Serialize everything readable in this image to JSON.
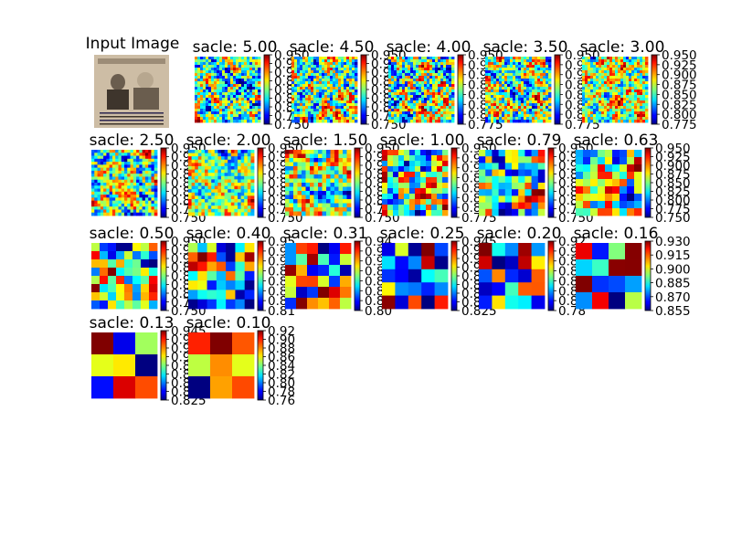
{
  "figure": {
    "background": "#ffffff",
    "input_title": "Input Image",
    "input_image": {
      "palette": [
        "#cdbda5",
        "#d9cab2",
        "#3e352c",
        "#6a5d4e",
        "#9c8c77",
        "#2b2550",
        "#b7a78f"
      ]
    }
  },
  "chart_data": {
    "type": "heatmap",
    "colormap": "jet",
    "panels": [
      {
        "title": "sacle: 5.00",
        "grid": 24,
        "ticks": [
          "0.950",
          "0.925",
          "0.900",
          "0.875",
          "0.850",
          "0.825",
          "0.800",
          "0.775",
          "0.750"
        ],
        "seed": 11
      },
      {
        "title": "sacle: 4.50",
        "grid": 24,
        "ticks": [
          "0.950",
          "0.925",
          "0.900",
          "0.875",
          "0.850",
          "0.825",
          "0.800",
          "0.775",
          "0.750"
        ],
        "seed": 12
      },
      {
        "title": "sacle: 4.00",
        "grid": 24,
        "ticks": [
          "0.950",
          "0.925",
          "0.900",
          "0.875",
          "0.850",
          "0.825",
          "0.800",
          "0.775"
        ],
        "seed": 13
      },
      {
        "title": "sacle: 3.50",
        "grid": 24,
        "ticks": [
          "0.950",
          "0.925",
          "0.900",
          "0.875",
          "0.850",
          "0.825",
          "0.800",
          "0.775"
        ],
        "seed": 14
      },
      {
        "title": "sacle: 3.00",
        "grid": 24,
        "ticks": [
          "0.950",
          "0.925",
          "0.900",
          "0.875",
          "0.850",
          "0.825",
          "0.800",
          "0.775"
        ],
        "seed": 15
      },
      {
        "title": "sacle: 2.50",
        "grid": 22,
        "ticks": [
          "0.950",
          "0.925",
          "0.900",
          "0.875",
          "0.850",
          "0.825",
          "0.800",
          "0.775",
          "0.750"
        ],
        "seed": 21
      },
      {
        "title": "sacle: 2.00",
        "grid": 20,
        "ticks": [
          "0.950",
          "0.925",
          "0.900",
          "0.875",
          "0.850",
          "0.825",
          "0.800",
          "0.775",
          "0.750"
        ],
        "seed": 22
      },
      {
        "title": "sacle: 1.50",
        "grid": 16,
        "ticks": [
          "0.950",
          "0.925",
          "0.900",
          "0.875",
          "0.850",
          "0.825",
          "0.800",
          "0.775",
          "0.750"
        ],
        "seed": 23
      },
      {
        "title": "sacle: 1.00",
        "grid": 12,
        "ticks": [
          "0.950",
          "0.925",
          "0.900",
          "0.875",
          "0.850",
          "0.825",
          "0.800",
          "0.775"
        ],
        "seed": 24
      },
      {
        "title": "sacle: 0.79",
        "grid": 10,
        "ticks": [
          "0.950",
          "0.925",
          "0.900",
          "0.875",
          "0.850",
          "0.825",
          "0.800",
          "0.775",
          "0.750"
        ],
        "seed": 25
      },
      {
        "title": "sacle: 0.63",
        "grid": 9,
        "ticks": [
          "0.950",
          "0.925",
          "0.900",
          "0.875",
          "0.850",
          "0.825",
          "0.800",
          "0.775",
          "0.750"
        ],
        "seed": 26
      },
      {
        "title": "sacle: 0.50",
        "grid": 8,
        "ticks": [
          "0.950",
          "0.925",
          "0.900",
          "0.875",
          "0.850",
          "0.825",
          "0.800",
          "0.775",
          "0.750"
        ],
        "seed": 31
      },
      {
        "title": "sacle: 0.40",
        "grid": 7,
        "ticks": [
          "0.95",
          "0.93",
          "0.91",
          "0.89",
          "0.87",
          "0.85",
          "0.83",
          "0.81"
        ],
        "seed": 32
      },
      {
        "title": "sacle: 0.31",
        "grid": 6,
        "ticks": [
          "0.94",
          "0.92",
          "0.90",
          "0.88",
          "0.86",
          "0.84",
          "0.82",
          "0.80"
        ],
        "seed": 33
      },
      {
        "title": "sacle: 0.25",
        "grid": 5,
        "ticks": [
          "0.945",
          "0.930",
          "0.915",
          "0.900",
          "0.885",
          "0.870",
          "0.855",
          "0.840",
          "0.825"
        ],
        "seed": 34
      },
      {
        "title": "sacle: 0.20",
        "grid": 5,
        "ticks": [
          "0.92",
          "0.90",
          "0.88",
          "0.86",
          "0.84",
          "0.82",
          "0.80",
          "0.78"
        ],
        "seed": 35
      },
      {
        "title": "sacle: 0.16",
        "grid": 4,
        "ticks": [
          "0.930",
          "0.915",
          "0.900",
          "0.885",
          "0.870",
          "0.855"
        ],
        "seed": 36
      },
      {
        "title": "sacle: 0.13",
        "grid": 3,
        "ticks": [
          "0.945",
          "0.930",
          "0.915",
          "0.900",
          "0.885",
          "0.870",
          "0.855",
          "0.840",
          "0.825"
        ],
        "seed": 41
      },
      {
        "title": "sacle: 0.10",
        "grid": 3,
        "ticks": [
          "0.92",
          "0.90",
          "0.88",
          "0.86",
          "0.84",
          "0.82",
          "0.80",
          "0.78",
          "0.76"
        ],
        "seed": 42
      }
    ]
  }
}
